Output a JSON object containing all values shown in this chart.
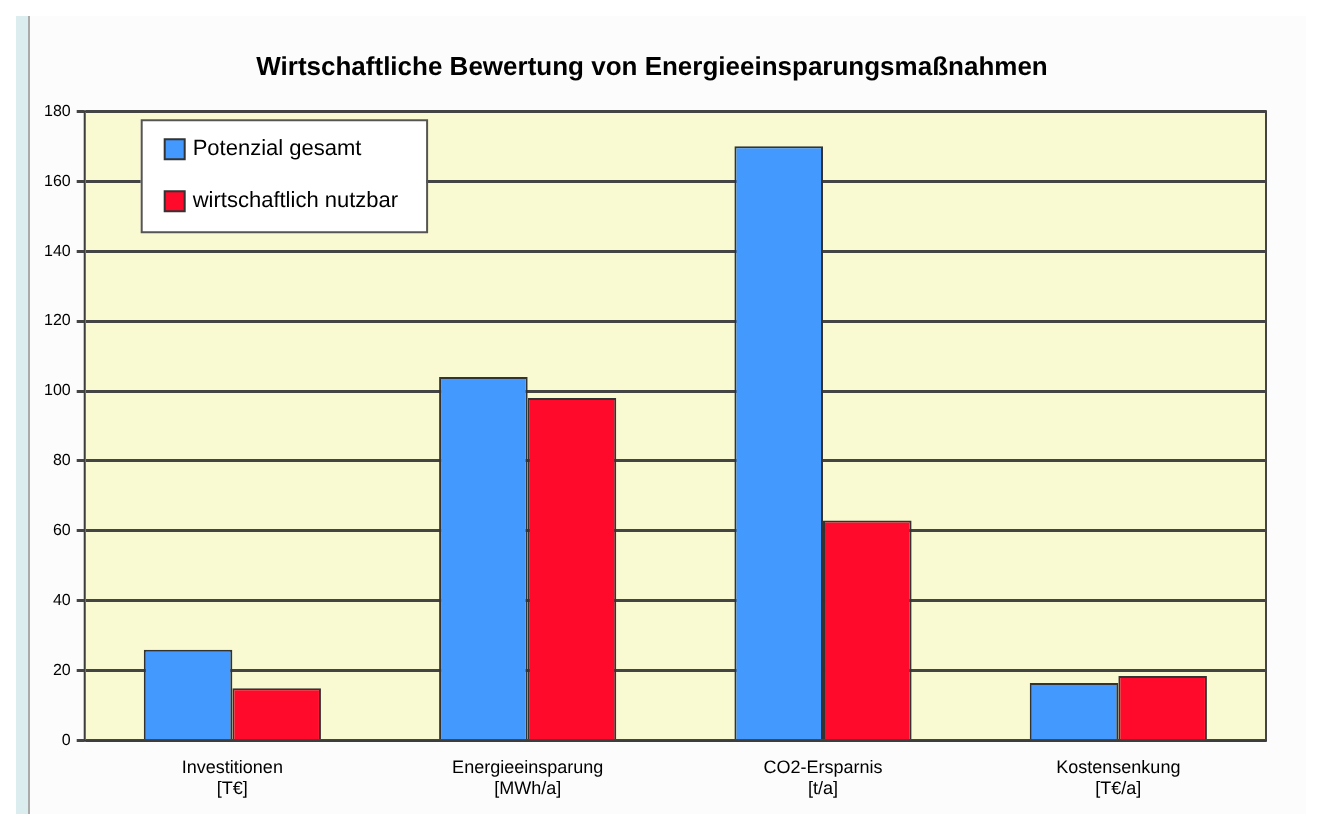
{
  "chart_data": {
    "type": "bar",
    "title": "Wirtschaftliche Bewertung von Energieeinsparungsmaßnahmen",
    "categories": [
      "Investitionen\n[T€]",
      "Energieeinsparung\n[MWh/a]",
      "CO2-Ersparnis\n[t/a]",
      "Kostensenkung\n[T€/a]"
    ],
    "series": [
      {
        "name": "Potenzial gesamt",
        "color": "#4499ff",
        "values": [
          26,
          104,
          170,
          16.5
        ]
      },
      {
        "name": "wirtschaftlich nutzbar",
        "color": "#ff0a2a",
        "values": [
          15,
          98,
          63,
          18.5
        ]
      }
    ],
    "ylim": [
      0,
      180
    ],
    "yticks": [
      0,
      20,
      40,
      60,
      80,
      100,
      120,
      140,
      160,
      180
    ],
    "grid": "y",
    "legend": "top left"
  }
}
